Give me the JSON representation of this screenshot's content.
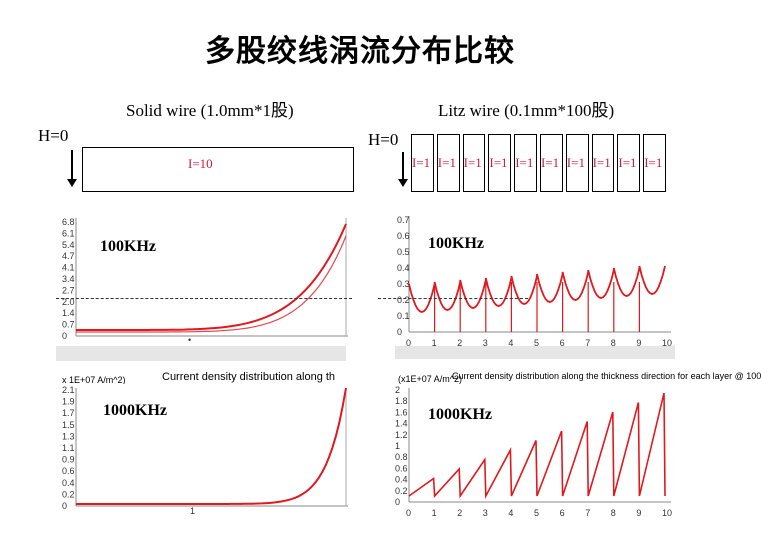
{
  "title": "多股绞线涡流分布比较",
  "left": {
    "header": "Solid wire (1.0mm*1股)",
    "h_label": "H=0",
    "conductor_label": "I=10",
    "panel_top_freq": "100KHz",
    "panel_bottom_freq": "1000KHz",
    "top_ticks": [
      "6.8",
      "6.1",
      "5.4",
      "4.7",
      "4.1",
      "3.4",
      "2.7",
      "2.0",
      "1.4",
      "0.7",
      "0"
    ],
    "bottom_ticks": [
      "2.1",
      "1.9",
      "1.7",
      "1.5",
      "1.3",
      "1.1",
      "0.9",
      "0.6",
      "0.4",
      "0.2",
      "0"
    ],
    "bottom_unit": "x 1E+07  A/m^2)",
    "caption": "Current density distribution along th",
    "x_tick": "1",
    "marker_dot": "•"
  },
  "right": {
    "header": "Litz wire (0.1mm*100股)",
    "h_label": "H=0",
    "strand_labels": [
      "I=1",
      "I=1",
      "I=1",
      "I=1",
      "I=1",
      "I=1",
      "I=1",
      "I=1",
      "I=1",
      "I=1"
    ],
    "panel_top_freq": "100KHz",
    "panel_bottom_freq": "1000KHz",
    "top_ticks": [
      "0.7",
      "0.6",
      "0.5",
      "0.4",
      "0.3",
      "0.2",
      "0.1",
      "0"
    ],
    "bottom_ticks": [
      "2",
      "1.8",
      "1.6",
      "1.4",
      "1.2",
      "1",
      "0.8",
      "0.6",
      "0.4",
      "0.2",
      "0"
    ],
    "bottom_unit": "(x1E+07 A/m^2)",
    "caption": "Current density distribution along the thickness direction for each layer @ 100",
    "x_ticks": [
      "0",
      "1",
      "2",
      "3",
      "4",
      "5",
      "6",
      "7",
      "8",
      "9",
      "10"
    ]
  },
  "colors": {
    "curve": "#e0191e",
    "label": "#c81e3c",
    "band": "#e6e6e6"
  }
}
